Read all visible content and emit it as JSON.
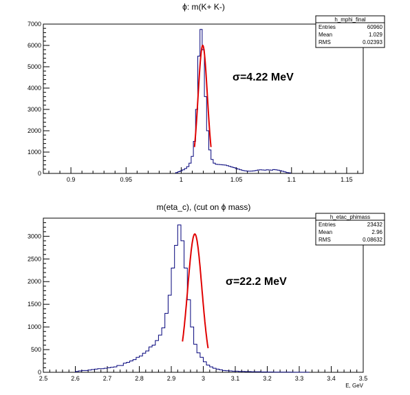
{
  "chart_data": [
    {
      "type": "histogram",
      "title": "ϕ: m(K+ K-)",
      "xlabel": "",
      "ylabel": "",
      "xlim": [
        0.875,
        1.165
      ],
      "ylim": [
        0,
        7000
      ],
      "x_ticks": [
        "0.9",
        "0.95",
        "1",
        "1.05",
        "1.1",
        "1.15"
      ],
      "x_tick_values": [
        0.9,
        0.95,
        1.0,
        1.05,
        1.1,
        1.15
      ],
      "y_ticks": [
        "0",
        "1000",
        "2000",
        "3000",
        "4000",
        "5000",
        "6000",
        "7000"
      ],
      "y_tick_values": [
        0,
        1000,
        2000,
        3000,
        4000,
        5000,
        6000,
        7000
      ],
      "stats": {
        "name": "h_mphi_final",
        "rows": [
          {
            "label": "Entries",
            "value": "60960"
          },
          {
            "label": "Mean",
            "value": "1.029"
          },
          {
            "label": "RMS",
            "value": "0.02393"
          }
        ]
      },
      "annotation": "σ=4.22 MeV",
      "histogram": {
        "bin_edges": [
          0.995,
          0.997,
          0.999,
          1.001,
          1.003,
          1.005,
          1.007,
          1.009,
          1.011,
          1.013,
          1.015,
          1.017,
          1.019,
          1.021,
          1.023,
          1.025,
          1.027,
          1.029,
          1.031,
          1.033,
          1.035,
          1.037,
          1.039,
          1.041,
          1.043,
          1.045,
          1.047,
          1.049,
          1.051,
          1.053,
          1.055,
          1.057,
          1.059,
          1.061,
          1.063,
          1.065,
          1.067,
          1.069,
          1.071,
          1.073,
          1.075,
          1.077,
          1.079,
          1.081,
          1.083,
          1.085,
          1.087,
          1.089,
          1.091,
          1.093,
          1.095,
          1.097,
          1.099
        ],
        "counts": [
          40,
          80,
          120,
          170,
          230,
          320,
          480,
          800,
          1500,
          3000,
          5500,
          6750,
          5800,
          3600,
          2000,
          1100,
          650,
          480,
          430,
          420,
          410,
          400,
          390,
          360,
          330,
          300,
          270,
          230,
          200,
          170,
          140,
          120,
          110,
          105,
          110,
          120,
          140,
          160,
          170,
          160,
          150,
          170,
          160,
          150,
          180,
          170,
          150,
          130,
          100,
          70,
          40,
          30
        ]
      },
      "fit": {
        "color": "#e00000",
        "mean": 1.0195,
        "sigma": 0.00422,
        "amplitude": 6000,
        "range": [
          1.012,
          1.027
        ]
      }
    },
    {
      "type": "histogram",
      "title": "m(eta_c), (cut on ϕ mass)",
      "xlabel": "E, GeV",
      "ylabel": "",
      "xlim": [
        2.5,
        3.5
      ],
      "ylim": [
        0,
        3400
      ],
      "x_ticks": [
        "2.5",
        "2.6",
        "2.7",
        "2.8",
        "2.9",
        "3",
        "3.1",
        "3.2",
        "3.3",
        "3.4",
        "3.5"
      ],
      "x_tick_values": [
        2.5,
        2.6,
        2.7,
        2.8,
        2.9,
        3.0,
        3.1,
        3.2,
        3.3,
        3.4,
        3.5
      ],
      "y_ticks": [
        "0",
        "500",
        "1000",
        "1500",
        "2000",
        "2500",
        "3000"
      ],
      "y_tick_values": [
        0,
        500,
        1000,
        1500,
        2000,
        2500,
        3000
      ],
      "stats": {
        "name": "h_etac_phimass",
        "rows": [
          {
            "label": "Entries",
            "value": "23432"
          },
          {
            "label": "Mean",
            "value": "2.96"
          },
          {
            "label": "RMS",
            "value": "0.08632"
          }
        ]
      },
      "annotation": "σ=22.2 MeV",
      "histogram": {
        "bin_edges": [
          2.6,
          2.61,
          2.62,
          2.63,
          2.64,
          2.65,
          2.66,
          2.67,
          2.68,
          2.69,
          2.7,
          2.71,
          2.72,
          2.73,
          2.74,
          2.75,
          2.76,
          2.77,
          2.78,
          2.79,
          2.8,
          2.81,
          2.82,
          2.83,
          2.84,
          2.85,
          2.86,
          2.87,
          2.88,
          2.89,
          2.9,
          2.91,
          2.92,
          2.93,
          2.94,
          2.95,
          2.96,
          2.97,
          2.98,
          2.99,
          3.0,
          3.01,
          3.02,
          3.03,
          3.04,
          3.05,
          3.06,
          3.07,
          3.08,
          3.09,
          3.1,
          3.11,
          3.12,
          3.13,
          3.14,
          3.15,
          3.16,
          3.17,
          3.18,
          3.19,
          3.2,
          3.21,
          3.22,
          3.23,
          3.24,
          3.25,
          3.26,
          3.27,
          3.28,
          3.29,
          3.3,
          3.31,
          3.32,
          3.33
        ],
        "counts": [
          20,
          30,
          40,
          40,
          50,
          60,
          70,
          80,
          80,
          90,
          100,
          110,
          120,
          150,
          150,
          200,
          220,
          250,
          280,
          330,
          360,
          420,
          470,
          560,
          600,
          700,
          820,
          980,
          1300,
          1700,
          2300,
          2800,
          3250,
          2900,
          2300,
          1600,
          1000,
          620,
          430,
          330,
          230,
          160,
          120,
          90,
          70,
          55,
          40,
          35,
          30,
          25,
          25,
          20,
          20,
          15,
          15,
          12,
          10,
          10,
          8,
          8,
          6,
          6,
          5,
          5,
          4,
          4,
          3,
          3,
          2,
          2,
          2,
          1,
          1
        ]
      },
      "fit": {
        "color": "#e00000",
        "mean": 2.9735,
        "sigma": 0.0222,
        "amplitude": 3050,
        "range": [
          2.935,
          3.015
        ]
      }
    }
  ]
}
